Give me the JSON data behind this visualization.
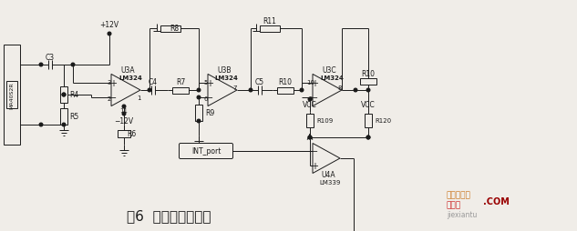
{
  "title": "图6  超声波接收电路",
  "title_fontsize": 11,
  "bg_color": "#f0ede8",
  "line_color": "#1a1a1a",
  "text_color": "#1a1a1a",
  "fig_width": 6.33,
  "fig_height": 2.55,
  "wm_text1": "电子发烧友",
  "wm_text2": "捷线图",
  "wm_text3": ".COM",
  "wm_text4": "jiexiantu",
  "wm_color1": "#cc7722",
  "wm_color2": "#cc2222",
  "wm_color3": "#990000",
  "wm_color4": "#999999"
}
